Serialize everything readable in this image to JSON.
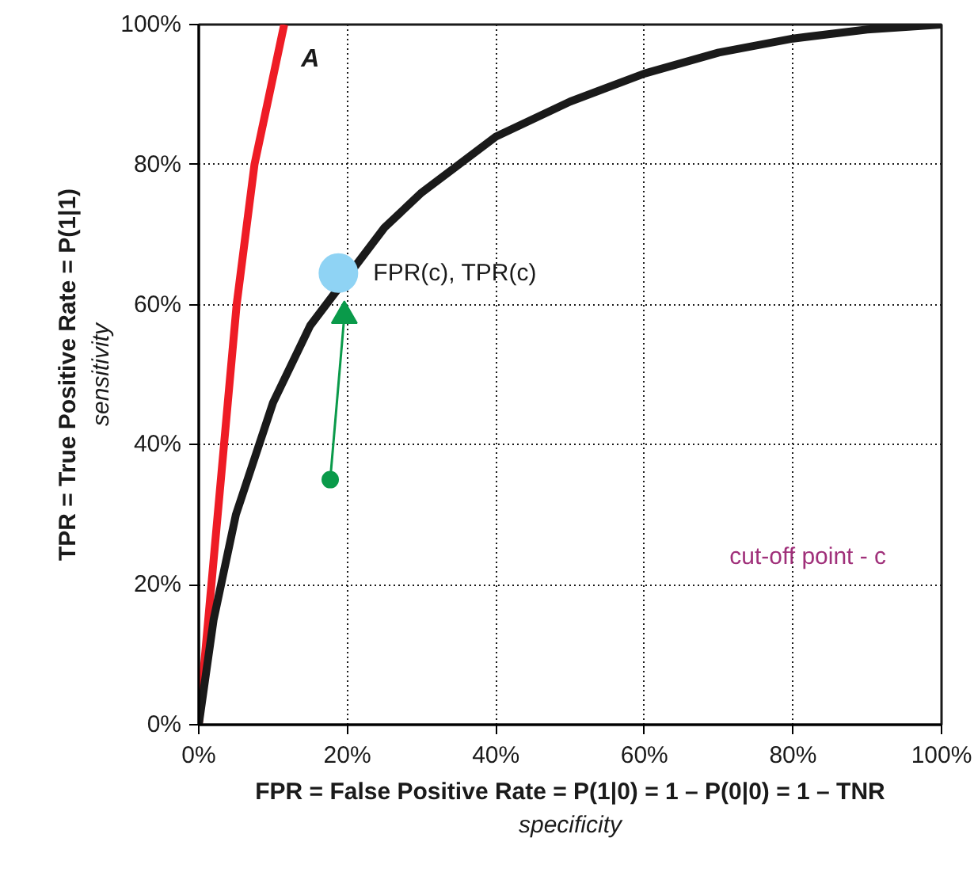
{
  "chart_data": {
    "type": "line",
    "xlabel": "FPR = False Positive Rate = P(1|0) = 1 – P(0|0) = 1 – TNR",
    "ylabel": "TPR = True Positive Rate = P(1|1)",
    "xlim": [
      0,
      100
    ],
    "ylim": [
      0,
      100
    ],
    "xticks": [
      {
        "value": 0,
        "label": "0%"
      },
      {
        "value": 20,
        "label": "20%"
      },
      {
        "value": 40,
        "label": "40%"
      },
      {
        "value": 60,
        "label": "60%"
      },
      {
        "value": 80,
        "label": "80%"
      },
      {
        "value": 100,
        "label": "100%"
      }
    ],
    "yticks": [
      {
        "value": 0,
        "label": "0%"
      },
      {
        "value": 20,
        "label": "20%"
      },
      {
        "value": 40,
        "label": "40%"
      },
      {
        "value": 60,
        "label": "60%"
      },
      {
        "value": 80,
        "label": "80%"
      },
      {
        "value": 100,
        "label": "100%"
      }
    ],
    "grid": true,
    "series": [
      {
        "color": "#ee1c25",
        "x": [
          0,
          1.7,
          3.4,
          5.1,
          7.5,
          11.5
        ],
        "values": [
          0,
          20,
          40,
          60,
          80,
          100
        ]
      },
      {
        "color": "#1a1a1a",
        "x": [
          0,
          2,
          5,
          10,
          15,
          25,
          30,
          40,
          50,
          60,
          70,
          80,
          90,
          100
        ],
        "values": [
          0,
          15,
          30,
          46,
          57,
          71,
          76,
          84,
          89,
          93,
          96,
          98,
          99.3,
          100
        ]
      },
      {
        "color": "#0a9a4a",
        "marker": "circle",
        "x": [
          17.7,
          19.6
        ],
        "values": [
          35,
          58.4
        ]
      },
      {
        "type": "scatter",
        "color": "#8fd3f4",
        "marker": "circle",
        "x": [
          18.8
        ],
        "values": [
          64.5
        ]
      }
    ],
    "annotations": [
      "sensitivity",
      "specificity",
      "A",
      {
        "text": "FPR(c), TPR(c)",
        "x": 18.8,
        "y": 64.5
      },
      "cut-off point - c"
    ]
  }
}
